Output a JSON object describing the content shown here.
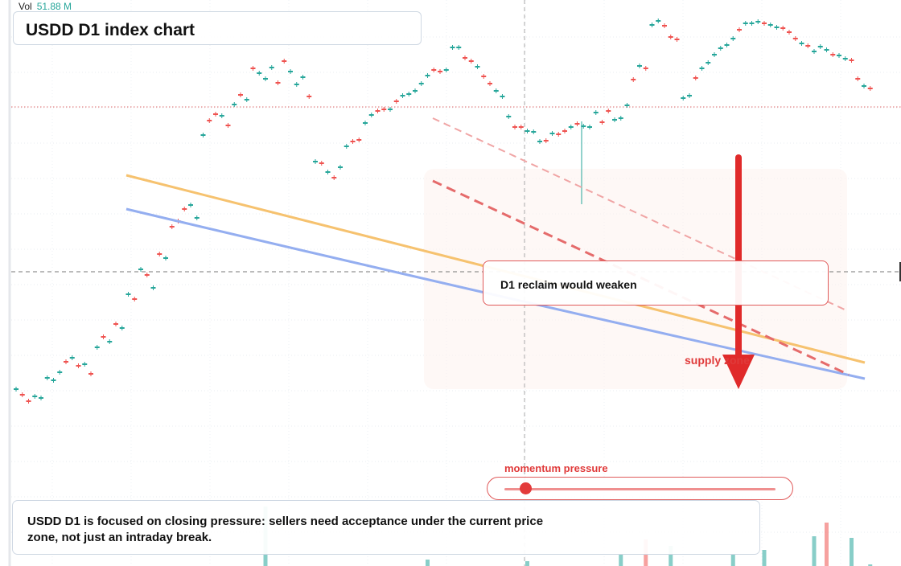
{
  "header": {
    "vol_label": "Vol",
    "vol_value": "51.88 M",
    "title": "USDD D1 index chart"
  },
  "annotations": {
    "callout": "D1 reclaim would weaken",
    "zone_label": "supply zone",
    "momentum_label": "momentum pressure",
    "momentum_level": 0.08,
    "note": "USDD D1 is focused on closing pressure: sellers need acceptance under the current price zone, not just an intraday break."
  },
  "colors": {
    "up": "#26a69a",
    "down": "#ef5350",
    "orange_line": "#f6c26f",
    "blue_line": "#94aef0",
    "arrow": "#e02a2a",
    "dashed_trend": "#e56b6b"
  },
  "chart_data": {
    "type": "candlestick",
    "title": "USDD D1 index chart",
    "grid": true,
    "legend": "none",
    "candles": [
      [
        0,
        110,
        1
      ],
      [
        1,
        103,
        0
      ],
      [
        2,
        95,
        0
      ],
      [
        3,
        101,
        1
      ],
      [
        4,
        99,
        1
      ],
      [
        5,
        124,
        1
      ],
      [
        6,
        121,
        1
      ],
      [
        7,
        131,
        1
      ],
      [
        8,
        144,
        0
      ],
      [
        9,
        149,
        1
      ],
      [
        10,
        139,
        0
      ],
      [
        11,
        141,
        1
      ],
      [
        12,
        129,
        0
      ],
      [
        13,
        162,
        1
      ],
      [
        14,
        175,
        0
      ],
      [
        15,
        169,
        1
      ],
      [
        16,
        191,
        0
      ],
      [
        17,
        186,
        1
      ],
      [
        18,
        228,
        1
      ],
      [
        19,
        222,
        0
      ],
      [
        20,
        259,
        1
      ],
      [
        21,
        252,
        0
      ],
      [
        22,
        236,
        1
      ],
      [
        23,
        278,
        0
      ],
      [
        24,
        273,
        1
      ],
      [
        25,
        312,
        0
      ],
      [
        26,
        319,
        0
      ],
      [
        27,
        334,
        0
      ],
      [
        28,
        339,
        1
      ],
      [
        29,
        323,
        1
      ],
      [
        30,
        426,
        1
      ],
      [
        31,
        444,
        0
      ],
      [
        32,
        452,
        0
      ],
      [
        33,
        450,
        1
      ],
      [
        34,
        438,
        0
      ],
      [
        35,
        464,
        1
      ],
      [
        36,
        476,
        0
      ],
      [
        37,
        470,
        1
      ],
      [
        38,
        509,
        0
      ],
      [
        39,
        503,
        1
      ],
      [
        40,
        496,
        1
      ],
      [
        41,
        510,
        1
      ],
      [
        42,
        491,
        0
      ],
      [
        43,
        518,
        0
      ],
      [
        44,
        505,
        1
      ],
      [
        45,
        489,
        1
      ],
      [
        46,
        498,
        1
      ],
      [
        47,
        474,
        0
      ],
      [
        48,
        393,
        1
      ],
      [
        49,
        391,
        0
      ],
      [
        50,
        380,
        1
      ],
      [
        51,
        373,
        0
      ],
      [
        52,
        386,
        1
      ],
      [
        53,
        412,
        1
      ],
      [
        54,
        418,
        0
      ],
      [
        55,
        420,
        0
      ],
      [
        56,
        441,
        1
      ],
      [
        57,
        451,
        1
      ],
      [
        58,
        456,
        0
      ],
      [
        59,
        458,
        0
      ],
      [
        60,
        458,
        1
      ],
      [
        61,
        468,
        0
      ],
      [
        62,
        475,
        1
      ],
      [
        63,
        477,
        1
      ],
      [
        64,
        481,
        1
      ],
      [
        65,
        490,
        1
      ],
      [
        66,
        500,
        1
      ],
      [
        67,
        507,
        0
      ],
      [
        68,
        505,
        0
      ],
      [
        69,
        507,
        1
      ],
      [
        70,
        535,
        1
      ],
      [
        71,
        535,
        1
      ],
      [
        72,
        522,
        0
      ],
      [
        73,
        518,
        0
      ],
      [
        74,
        511,
        1
      ],
      [
        75,
        499,
        0
      ],
      [
        76,
        490,
        0
      ],
      [
        77,
        481,
        1
      ],
      [
        78,
        474,
        1
      ],
      [
        79,
        449,
        1
      ],
      [
        80,
        436,
        0
      ],
      [
        81,
        436,
        0
      ],
      [
        82,
        431,
        1
      ],
      [
        83,
        430,
        1
      ],
      [
        84,
        418,
        1
      ],
      [
        85,
        419,
        0
      ],
      [
        86,
        428,
        1
      ],
      [
        87,
        427,
        0
      ],
      [
        88,
        431,
        0
      ],
      [
        89,
        436,
        1
      ],
      [
        90,
        440,
        0
      ],
      [
        91,
        437,
        1
      ],
      [
        92,
        436,
        1
      ],
      [
        93,
        454,
        1
      ],
      [
        94,
        442,
        0
      ],
      [
        95,
        456,
        0
      ],
      [
        96,
        445,
        1
      ],
      [
        97,
        447,
        1
      ],
      [
        98,
        463,
        1
      ],
      [
        99,
        495,
        0
      ],
      [
        100,
        512,
        1
      ],
      [
        101,
        509,
        0
      ],
      [
        102,
        563,
        1
      ],
      [
        103,
        568,
        1
      ],
      [
        104,
        562,
        0
      ],
      [
        105,
        548,
        0
      ],
      [
        106,
        545,
        0
      ],
      [
        107,
        472,
        1
      ],
      [
        108,
        475,
        1
      ],
      [
        109,
        497,
        0
      ],
      [
        110,
        509,
        1
      ],
      [
        111,
        516,
        1
      ],
      [
        112,
        526,
        1
      ],
      [
        113,
        534,
        1
      ],
      [
        114,
        538,
        1
      ],
      [
        115,
        546,
        1
      ],
      [
        116,
        557,
        0
      ],
      [
        117,
        565,
        1
      ],
      [
        118,
        565,
        1
      ],
      [
        119,
        567,
        1
      ],
      [
        120,
        565,
        0
      ],
      [
        121,
        563,
        1
      ],
      [
        122,
        560,
        1
      ],
      [
        123,
        559,
        0
      ],
      [
        124,
        554,
        0
      ],
      [
        125,
        546,
        0
      ],
      [
        126,
        540,
        1
      ],
      [
        127,
        537,
        0
      ],
      [
        128,
        530,
        1
      ],
      [
        129,
        536,
        1
      ],
      [
        130,
        532,
        1
      ],
      [
        131,
        526,
        0
      ],
      [
        132,
        525,
        1
      ],
      [
        133,
        521,
        1
      ],
      [
        134,
        519,
        0
      ],
      [
        135,
        496,
        0
      ],
      [
        136,
        487,
        1
      ],
      [
        137,
        484,
        0
      ]
    ],
    "volume": [
      [
        40,
        74,
        1
      ],
      [
        66,
        8,
        1
      ],
      [
        82,
        6,
        1
      ],
      [
        97,
        14,
        1
      ],
      [
        101,
        33,
        0
      ],
      [
        105,
        25,
        1
      ],
      [
        115,
        15,
        1
      ],
      [
        120,
        20,
        1
      ],
      [
        128,
        37,
        1
      ],
      [
        130,
        54,
        0
      ],
      [
        134,
        35,
        1
      ],
      [
        137,
        2,
        1
      ]
    ]
  }
}
